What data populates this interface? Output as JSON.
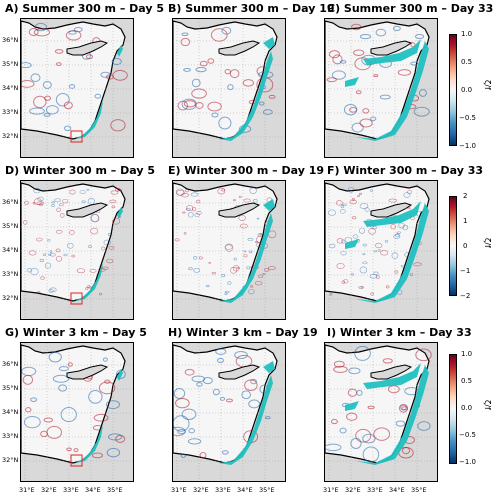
{
  "panels": [
    {
      "title": "A) Summer 300 m – Day 5"
    },
    {
      "title": "B) Summer 300 m – Day 19"
    },
    {
      "title": "C) Summer 300 m – Day 33"
    },
    {
      "title": "D) Winter 300 m – Day 5"
    },
    {
      "title": "E) Winter 300 m – Day 19"
    },
    {
      "title": "F) Winter 300 m – Day 33"
    },
    {
      "title": "G) Winter 3 km – Day 5"
    },
    {
      "title": "H) Winter 3 km – Day 19"
    },
    {
      "title": "I) Winter 3 km – Day 33"
    }
  ],
  "lat_ticks": [
    "36°N",
    "35°N",
    "34°N",
    "33°N",
    "32°N"
  ],
  "lon_ticks": [
    "31°E",
    "32°E",
    "33°E",
    "34°E",
    "35°E"
  ],
  "colorbars": [
    {
      "ticks": [
        "1.0",
        "0.5",
        "0.0",
        "−0.5",
        "−1.0"
      ],
      "label": "ζ/f"
    },
    {
      "ticks": [
        "2",
        "1",
        "0",
        "−1",
        "−2"
      ],
      "label": "ζ/f"
    },
    {
      "ticks": [
        "1.0",
        "0.5",
        "0.0",
        "−0.5",
        "−1.0"
      ],
      "label": "ζ/f"
    }
  ],
  "colors": {
    "tracer": "#20c0c0",
    "land": "#d9d9d9",
    "box": "#e02020",
    "pos_vort": "#b2182b",
    "neg_vort": "#2166ac"
  }
}
